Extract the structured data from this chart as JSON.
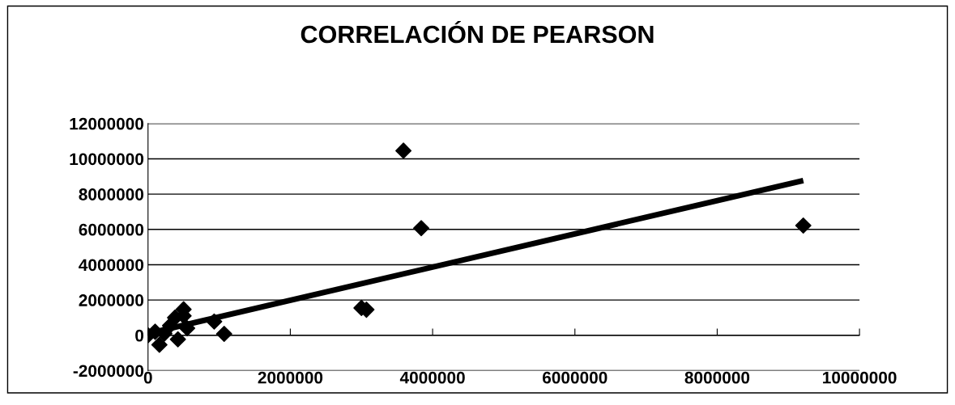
{
  "chart_data": {
    "type": "scatter",
    "title": "CORRELACIÓN DE PEARSON",
    "xlim": [
      0,
      10000000
    ],
    "xticks": [
      0,
      2000000,
      4000000,
      6000000,
      8000000,
      10000000
    ],
    "ylim": [
      -2000000,
      12000000
    ],
    "yticks": [
      -2000000,
      0,
      2000000,
      4000000,
      6000000,
      8000000,
      10000000,
      12000000
    ],
    "grid": "y",
    "series": [
      {
        "marker": "diamond",
        "color": "#000000",
        "x": [
          0,
          100000,
          160000,
          230000,
          310000,
          380000,
          420000,
          460000,
          500000,
          500000,
          540000,
          550000,
          930000,
          1070000,
          3000000,
          3070000,
          3590000,
          3840000,
          9210000
        ],
        "values": [
          0,
          200000,
          -540000,
          100000,
          550000,
          1000000,
          -230000,
          null,
          1470000,
          1100000,
          null,
          400000,
          780000,
          80000,
          1550000,
          1450000,
          10460000,
          6070000,
          6220000
        ]
      },
      {
        "type": "line",
        "color": "#000000",
        "x": [
          0,
          9210000
        ],
        "values": [
          100000,
          8770000
        ]
      }
    ]
  }
}
